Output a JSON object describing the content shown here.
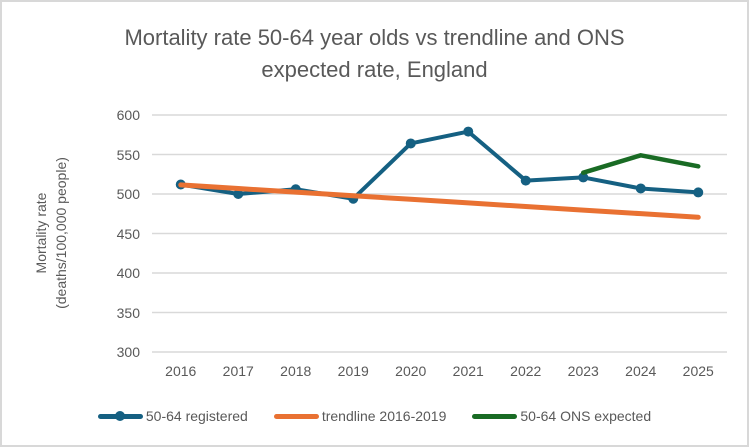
{
  "header": {
    "title_line1": "Mortality rate 50-64 year olds vs trendline and ONS",
    "title_line2": "expected rate, England"
  },
  "axes": {
    "y_title_line1": "Mortality rate",
    "y_title_line2": "(deaths/100,000 people)",
    "y_ticks": [
      600,
      550,
      500,
      450,
      400,
      350,
      300
    ],
    "x_labels": [
      "2016",
      "2017",
      "2018",
      "2019",
      "2020",
      "2021",
      "2022",
      "2023",
      "2024",
      "2025"
    ]
  },
  "colors": {
    "text": "#595959",
    "gridline": "#d9d9d9",
    "registered": "#156082",
    "trendline": "#e97132",
    "expected": "#196b24"
  },
  "chart_data": {
    "type": "line",
    "title": "Mortality rate 50-64 year olds vs trendline and ONS expected rate, England",
    "xlabel": "",
    "ylabel": "Mortality rate (deaths/100,000 people)",
    "ylim": [
      300,
      600
    ],
    "y_tick_step": 50,
    "grid": true,
    "legend_position": "bottom",
    "categories": [
      "2016",
      "2017",
      "2018",
      "2019",
      "2020",
      "2021",
      "2022",
      "2023",
      "2024",
      "2025"
    ],
    "series": [
      {
        "name": "50-64 registered",
        "color": "#156082",
        "markers": true,
        "values": [
          512,
          500,
          506,
          494,
          564,
          579,
          517,
          521,
          507,
          502
        ]
      },
      {
        "name": "trendline 2016-2019",
        "color": "#e97132",
        "markers": false,
        "values": [
          511.5,
          506.9,
          502.4,
          497.8,
          493.3,
          488.7,
          484.2,
          479.6,
          475.1,
          470.5
        ]
      },
      {
        "name": "50-64 ONS expected",
        "color": "#196b24",
        "markers": false,
        "values": [
          null,
          null,
          null,
          null,
          null,
          null,
          null,
          527,
          549,
          535
        ]
      }
    ]
  }
}
